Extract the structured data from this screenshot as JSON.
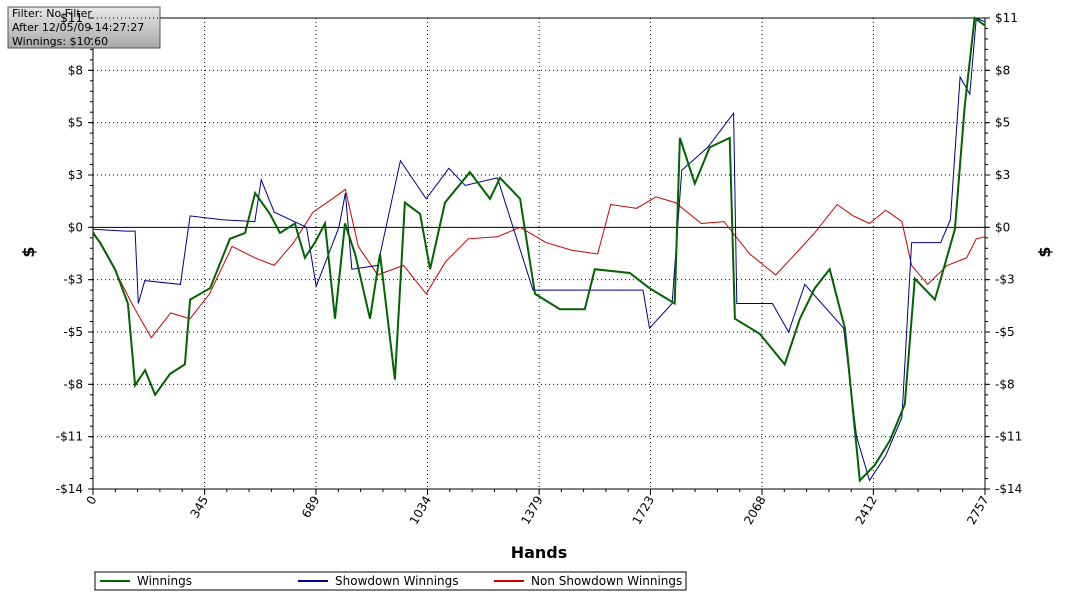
{
  "chart_data": {
    "type": "line",
    "info": [
      "Filter: No Filter",
      "After 12/05/09 14:27:27",
      "Winnings: $10.60"
    ],
    "x_label": "Hands",
    "y_label": "$",
    "y2_label": "$",
    "xlim": [
      0,
      2757
    ],
    "xticks": [
      0,
      345,
      689,
      1034,
      1379,
      1723,
      2068,
      2412,
      2757
    ],
    "ylim": [
      -13.75,
      11
    ],
    "yticks": [
      {
        "value": -13.75,
        "label": "-$14"
      },
      {
        "value": -11,
        "label": "-$11"
      },
      {
        "value": -8.25,
        "label": "-$8"
      },
      {
        "value": -5.5,
        "label": "-$5"
      },
      {
        "value": -2.75,
        "label": "-$3"
      },
      {
        "value": 0,
        "label": "$0"
      },
      {
        "value": 2.75,
        "label": "$3"
      },
      {
        "value": 5.5,
        "label": "$5"
      },
      {
        "value": 8.25,
        "label": "$8"
      },
      {
        "value": 11,
        "label": "$11"
      }
    ],
    "grid": true,
    "series": [
      {
        "name": "Winnings",
        "color": "#006400",
        "x": [
          0,
          22,
          68,
          108,
          130,
          161,
          192,
          238,
          284,
          300,
          362,
          423,
          470,
          501,
          547,
          578,
          624,
          655,
          686,
          717,
          748,
          779,
          810,
          856,
          887,
          933,
          964,
          1011,
          1042,
          1088,
          1165,
          1227,
          1258,
          1320,
          1366,
          1443,
          1520,
          1551,
          1659,
          1720,
          1798,
          1814,
          1860,
          1906,
          1968,
          1984,
          2061,
          2138,
          2185,
          2231,
          2277,
          2324,
          2370,
          2416,
          2463,
          2509,
          2540,
          2602,
          2664,
          2694,
          2725,
          2757
        ],
        "values": [
          -0.3,
          -0.8,
          -2.2,
          -4.0,
          -8.3,
          -7.5,
          -8.8,
          -7.7,
          -7.2,
          -3.8,
          -3.2,
          -0.6,
          -0.3,
          1.8,
          0.7,
          -0.3,
          0.2,
          -1.6,
          -0.8,
          0.2,
          -4.8,
          0.2,
          -1.4,
          -4.8,
          -1.4,
          -8.0,
          1.3,
          0.7,
          -2.2,
          1.3,
          2.9,
          1.5,
          2.6,
          1.5,
          -3.5,
          -4.3,
          -4.3,
          -2.2,
          -2.4,
          -3.2,
          -4.0,
          4.7,
          2.3,
          4.2,
          4.7,
          -4.8,
          -5.6,
          -7.2,
          -4.8,
          -3.2,
          -2.2,
          -5.3,
          -13.3,
          -12.5,
          -11.2,
          -9.3,
          -2.7,
          -3.8,
          -0.1,
          6.3,
          11.0,
          10.6
        ]
      },
      {
        "name": "Showdown Winnings",
        "color": "#00008b",
        "x": [
          0,
          100,
          130,
          140,
          160,
          270,
          300,
          400,
          500,
          520,
          560,
          660,
          690,
          760,
          780,
          800,
          880,
          950,
          1030,
          1100,
          1150,
          1250,
          1360,
          1500,
          1700,
          1720,
          1790,
          1820,
          1900,
          1980,
          1990,
          2100,
          2150,
          2200,
          2320,
          2360,
          2400,
          2450,
          2500,
          2530,
          2620,
          2650,
          2680,
          2710,
          2730,
          2757
        ],
        "values": [
          -0.1,
          -0.2,
          -0.2,
          -4.0,
          -2.8,
          -3.0,
          0.6,
          0.4,
          0.3,
          2.5,
          0.8,
          0,
          -3.1,
          0,
          1.8,
          -2.2,
          -2.0,
          3.5,
          1.5,
          3.1,
          2.2,
          2.6,
          -3.3,
          -3.3,
          -3.3,
          -5.3,
          -4.0,
          3.0,
          4.2,
          6.0,
          -4.0,
          -4.0,
          -5.5,
          -3.0,
          -5.3,
          -11.0,
          -13.3,
          -12.0,
          -10.0,
          -0.8,
          -0.8,
          0.4,
          7.9,
          7.0,
          11,
          10.8
        ]
      },
      {
        "name": "Non Showdown Winnings",
        "color": "#cc0000",
        "x": [
          0,
          60,
          120,
          180,
          240,
          300,
          360,
          430,
          500,
          560,
          620,
          680,
          740,
          780,
          820,
          880,
          960,
          1030,
          1090,
          1160,
          1250,
          1320,
          1400,
          1480,
          1560,
          1600,
          1680,
          1740,
          1800,
          1880,
          1950,
          2030,
          2110,
          2160,
          2230,
          2300,
          2350,
          2400,
          2450,
          2500,
          2530,
          2580,
          2640,
          2700,
          2730,
          2757
        ],
        "values": [
          -0.2,
          -2.0,
          -4.0,
          -5.8,
          -4.5,
          -4.8,
          -3.5,
          -1.0,
          -1.6,
          -2.0,
          -0.8,
          0.8,
          1.5,
          2.0,
          -1.0,
          -2.5,
          -2.0,
          -3.5,
          -1.8,
          -0.6,
          -0.5,
          0,
          -0.8,
          -1.2,
          -1.4,
          1.2,
          1.0,
          1.6,
          1.3,
          0.2,
          0.3,
          -1.4,
          -2.5,
          -1.6,
          -0.3,
          1.2,
          0.6,
          0.2,
          0.9,
          0.3,
          -2.0,
          -3.0,
          -2.0,
          -1.6,
          -0.6,
          -0.5
        ]
      }
    ]
  }
}
